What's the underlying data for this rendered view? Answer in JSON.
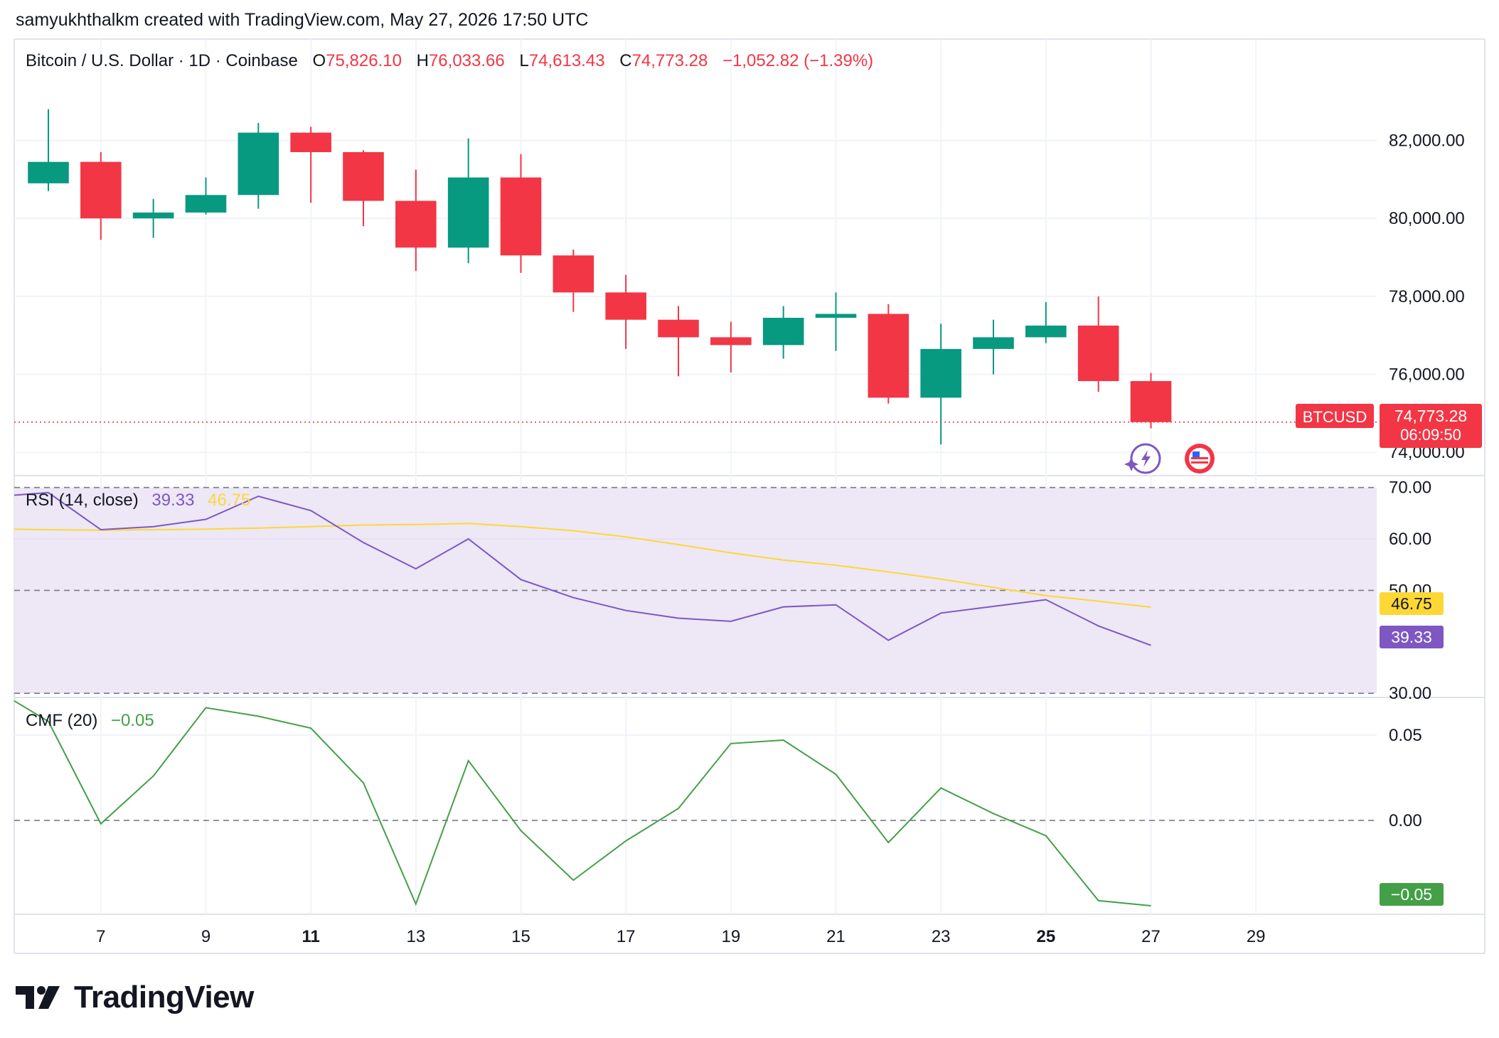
{
  "header": {
    "creator_line": "samyukhthalkm created with TradingView.com, May 27, 2026 17:50 UTC"
  },
  "legend": {
    "symbol": "Bitcoin / U.S. Dollar · 1D · Coinbase",
    "o_label": "O",
    "o_value": "75,826.10",
    "h_label": "H",
    "h_value": "76,033.66",
    "l_label": "L",
    "l_value": "74,613.43",
    "c_label": "C",
    "c_value": "74,773.28",
    "change": "−1,052.82 (−1.39%)"
  },
  "price_tag": {
    "symbol": "BTCUSD",
    "price": "74,773.28",
    "countdown": "06:09:50"
  },
  "rsi": {
    "title": "RSI (14, close)",
    "value": "39.33",
    "ma_value": "46.75"
  },
  "cmf": {
    "title": "CMF (20)",
    "value": "−0.05"
  },
  "branding": {
    "name": "TradingView"
  },
  "colors": {
    "up": "#089981",
    "down": "#f23645",
    "rsi": "#7e57c2",
    "rsi_ma": "#fdd835",
    "cmf": "#43a047",
    "band": "#ede7f6"
  },
  "icons": [
    "ai-sparkle-icon",
    "us-flag-event-icon",
    "tradingview-logo-icon"
  ],
  "chart_data": [
    {
      "type": "candlestick",
      "x_ticks": [
        "7",
        "9",
        "11",
        "13",
        "15",
        "17",
        "19",
        "21",
        "23",
        "25",
        "27",
        "29"
      ],
      "x_ticks_bold": [
        "11",
        "25"
      ],
      "y_ticks": [
        "74,000.00",
        "76,000.00",
        "78,000.00",
        "80,000.00",
        "82,000.00"
      ],
      "ylim": [
        73400,
        84600
      ],
      "xlim": [
        5.35,
        31.3
      ],
      "candles": [
        {
          "day": 6,
          "o": 80900,
          "h": 82800,
          "l": 80700,
          "c": 81450
        },
        {
          "day": 7,
          "o": 81450,
          "h": 81700,
          "l": 79450,
          "c": 80000
        },
        {
          "day": 8,
          "o": 80000,
          "h": 80500,
          "l": 79500,
          "c": 80150
        },
        {
          "day": 9,
          "o": 80150,
          "h": 81050,
          "l": 80100,
          "c": 80600
        },
        {
          "day": 10,
          "o": 80600,
          "h": 82450,
          "l": 80250,
          "c": 82200
        },
        {
          "day": 11,
          "o": 82200,
          "h": 82350,
          "l": 80400,
          "c": 81700
        },
        {
          "day": 12,
          "o": 81700,
          "h": 81750,
          "l": 79800,
          "c": 80450
        },
        {
          "day": 13,
          "o": 80450,
          "h": 81250,
          "l": 78650,
          "c": 79250
        },
        {
          "day": 14,
          "o": 79250,
          "h": 82050,
          "l": 78850,
          "c": 81050
        },
        {
          "day": 15,
          "o": 81050,
          "h": 81650,
          "l": 78600,
          "c": 79050
        },
        {
          "day": 16,
          "o": 79050,
          "h": 79200,
          "l": 77600,
          "c": 78100
        },
        {
          "day": 17,
          "o": 78100,
          "h": 78550,
          "l": 76650,
          "c": 77400
        },
        {
          "day": 18,
          "o": 77400,
          "h": 77750,
          "l": 75950,
          "c": 76950
        },
        {
          "day": 19,
          "o": 76950,
          "h": 77350,
          "l": 76050,
          "c": 76750
        },
        {
          "day": 20,
          "o": 76750,
          "h": 77750,
          "l": 76400,
          "c": 77450
        },
        {
          "day": 21,
          "o": 77450,
          "h": 78100,
          "l": 76600,
          "c": 77550
        },
        {
          "day": 22,
          "o": 77550,
          "h": 77800,
          "l": 75250,
          "c": 75400
        },
        {
          "day": 23,
          "o": 75400,
          "h": 77300,
          "l": 74200,
          "c": 76650
        },
        {
          "day": 24,
          "o": 76650,
          "h": 77400,
          "l": 76000,
          "c": 76950
        },
        {
          "day": 25,
          "o": 76950,
          "h": 77850,
          "l": 76800,
          "c": 77250
        },
        {
          "day": 26,
          "o": 77250,
          "h": 78000,
          "l": 75550,
          "c": 75826.1
        },
        {
          "day": 27,
          "o": 75826.1,
          "h": 76033.66,
          "l": 74613.43,
          "c": 74773.28
        }
      ],
      "last_price": 74773.28
    },
    {
      "type": "line",
      "name": "RSI",
      "y_ticks": [
        "30.00",
        "50.00",
        "60.00",
        "70.00"
      ],
      "ylim": [
        29.2,
        72.3
      ],
      "band": [
        30,
        70
      ],
      "midline": 50,
      "x": [
        5.35,
        6,
        7,
        8,
        9,
        10,
        11,
        12,
        13,
        14,
        15,
        16,
        17,
        18,
        19,
        20,
        21,
        22,
        23,
        24,
        25,
        26,
        27
      ],
      "series": [
        {
          "name": "RSI (14, close)",
          "values": [
            68.5,
            69.0,
            61.8,
            62.4,
            63.8,
            68.3,
            65.5,
            59.3,
            54.2,
            60.0,
            52.1,
            48.6,
            46.1,
            44.6,
            44.0,
            46.8,
            47.2,
            40.3,
            45.6,
            46.9,
            48.2,
            43.1,
            39.33
          ]
        },
        {
          "name": "MA",
          "values": [
            61.9,
            61.8,
            61.7,
            61.8,
            61.9,
            62.1,
            62.4,
            62.7,
            62.8,
            63.0,
            62.4,
            61.6,
            60.4,
            58.9,
            57.3,
            55.9,
            54.9,
            53.6,
            52.2,
            50.6,
            49.0,
            47.9,
            46.75
          ]
        }
      ]
    },
    {
      "type": "line",
      "name": "CMF",
      "y_ticks": [
        "0.00",
        "0.05"
      ],
      "ylim": [
        -0.055,
        0.072
      ],
      "zero_line": 0,
      "x": [
        5.35,
        6,
        7,
        8,
        9,
        10,
        11,
        12,
        13,
        14,
        15,
        16,
        17,
        18,
        19,
        20,
        21,
        22,
        23,
        24,
        25,
        26,
        27
      ],
      "series": [
        {
          "name": "CMF (20)",
          "values": [
            0.07,
            0.058,
            -0.002,
            0.026,
            0.066,
            0.061,
            0.054,
            0.022,
            -0.049,
            0.035,
            -0.006,
            -0.035,
            -0.012,
            0.007,
            0.045,
            0.047,
            0.027,
            -0.013,
            0.019,
            0.004,
            -0.009,
            -0.047,
            -0.05
          ]
        }
      ]
    }
  ]
}
